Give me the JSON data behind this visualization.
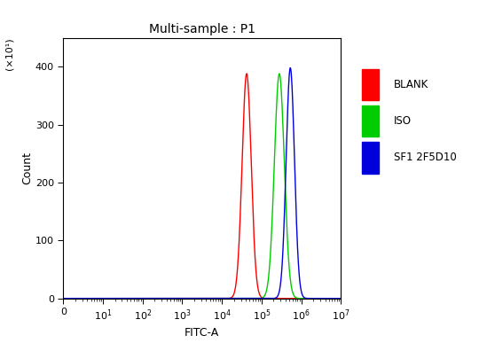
{
  "title": "Multi-sample : P1",
  "xlabel": "FITC-A",
  "ylabel": "Count",
  "ylabel_scale_label": "(×10¹)",
  "ylim": [
    0,
    450
  ],
  "yticks": [
    0,
    100,
    200,
    300,
    400
  ],
  "xlim_left": 1,
  "xlim_right": 10000000.0,
  "series": [
    {
      "label": "BLANK",
      "color": "#ff0000",
      "peak_x": 42000,
      "peak_y": 388,
      "sigma_log": 0.115
    },
    {
      "label": "ISO",
      "color": "#00cc00",
      "peak_x": 280000,
      "peak_y": 388,
      "sigma_log": 0.125
    },
    {
      "label": "SF1 2F5D10",
      "color": "#0000dd",
      "peak_x": 530000,
      "peak_y": 398,
      "sigma_log": 0.105
    }
  ],
  "legend_labels": [
    "BLANK",
    "ISO",
    "SF1 2F5D10"
  ],
  "legend_colors": [
    "#ff0000",
    "#00cc00",
    "#0000dd"
  ],
  "legend_fontsize": 8.5,
  "title_fontsize": 10,
  "axis_label_fontsize": 9,
  "tick_fontsize": 8,
  "background_color": "#ffffff",
  "plot_bg_color": "#ffffff",
  "linewidth": 1.0
}
